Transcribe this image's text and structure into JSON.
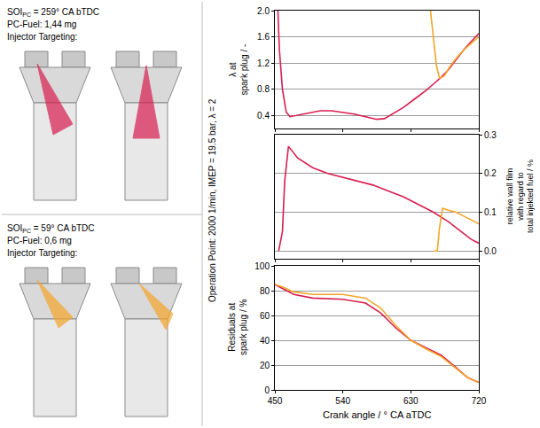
{
  "cases": [
    {
      "soi_label": "SOI",
      "soi_subscript": "PC",
      "soi_value": "= 259° CA bTDC",
      "fuel": "PC-Fuel: 1,44 mg",
      "targeting": "Injector Targeting:",
      "color": "#d81e50"
    },
    {
      "soi_label": "SOI",
      "soi_subscript": "PC",
      "soi_value": "= 59° CA bTDC",
      "fuel": "PC-Fuel: 0,6 mg",
      "targeting": "Injector Targeting:",
      "color": "#f5a52a"
    }
  ],
  "operation_point": "Operation Point: 2000 1/min, IMEP = 19.5 bar, λ = 2",
  "chart_data": [
    {
      "type": "line",
      "ylabel": [
        "λ at",
        "spark plug / -"
      ],
      "xlim": [
        450,
        720
      ],
      "xticks": [
        450,
        540,
        630,
        720
      ],
      "ylim": [
        0.2,
        2.0
      ],
      "yticks": [
        0.4,
        0.8,
        1.2,
        1.6,
        {
          "value": 2.0,
          "label": "2.0"
        }
      ],
      "grid": "y",
      "tick_labels": "y",
      "series": [
        {
          "color": "#d81e50",
          "x": [
            454,
            456,
            460,
            465,
            470,
            480,
            495,
            510,
            525,
            540,
            555,
            570,
            585,
            595,
            605,
            620,
            635,
            650,
            660,
            670,
            680,
            690,
            700,
            710,
            720
          ],
          "values": [
            2.0,
            1.4,
            0.8,
            0.45,
            0.38,
            0.4,
            0.44,
            0.47,
            0.47,
            0.45,
            0.42,
            0.38,
            0.34,
            0.35,
            0.42,
            0.52,
            0.65,
            0.78,
            0.88,
            0.98,
            1.1,
            1.25,
            1.4,
            1.53,
            1.65
          ]
        },
        {
          "color": "#f5a52a",
          "x": [
            656,
            660,
            664,
            668,
            674,
            682,
            692,
            702,
            712,
            720
          ],
          "values": [
            2.0,
            1.6,
            1.15,
            0.97,
            1.0,
            1.15,
            1.3,
            1.42,
            1.52,
            1.6
          ]
        }
      ]
    },
    {
      "type": "line",
      "y2label": [
        "relative wall film",
        "with regard to",
        "total injekted fuel / %"
      ],
      "xlim": [
        450,
        720
      ],
      "xticks": [
        450,
        540,
        630,
        720
      ],
      "y2lim": [
        -0.02,
        0.3
      ],
      "y2ticks": [
        {
          "value": 0,
          "label": "0.0"
        },
        0.1,
        0.2,
        0.3
      ],
      "grid": "y",
      "tick_labels": "y",
      "series": [
        {
          "color": "#d81e50",
          "axis": "y2",
          "x": [
            455,
            460,
            463,
            468,
            480,
            500,
            520,
            540,
            560,
            580,
            600,
            620,
            640,
            660,
            680,
            700,
            710,
            720
          ],
          "values": [
            0,
            0.05,
            0.18,
            0.27,
            0.24,
            0.215,
            0.2,
            0.19,
            0.18,
            0.17,
            0.155,
            0.14,
            0.12,
            0.1,
            0.075,
            0.045,
            0.03,
            0.02
          ]
        },
        {
          "color": "#f5a52a",
          "axis": "y2",
          "x": [
            660,
            665,
            668,
            672,
            680,
            690,
            700,
            710,
            720
          ],
          "values": [
            0,
            0,
            0.06,
            0.11,
            0.105,
            0.1,
            0.09,
            0.08,
            0.07
          ]
        }
      ]
    },
    {
      "type": "line",
      "ylabel": [
        "Residuals at",
        "spark plug / %"
      ],
      "xlabel": "Crank angle / ° CA aTDC",
      "xlim": [
        450,
        720
      ],
      "xticks": [
        450,
        540,
        630,
        720
      ],
      "ylim": [
        0,
        100
      ],
      "yticks": [
        0,
        20,
        40,
        60,
        80,
        100
      ],
      "grid": "y",
      "tick_labels": true,
      "series": [
        {
          "color": "#d81e50",
          "x": [
            450,
            460,
            475,
            500,
            540,
            570,
            590,
            610,
            630,
            650,
            670,
            690,
            705,
            720
          ],
          "values": [
            85,
            82,
            77,
            74,
            73,
            70,
            62,
            50,
            40,
            34,
            28,
            18,
            10,
            6
          ]
        },
        {
          "color": "#f5a52a",
          "x": [
            450,
            460,
            475,
            500,
            540,
            570,
            590,
            610,
            630,
            650,
            670,
            690,
            705,
            720
          ],
          "values": [
            85,
            83,
            79,
            77,
            77,
            74,
            66,
            52,
            40,
            33,
            27,
            17,
            10,
            6
          ]
        }
      ]
    }
  ]
}
